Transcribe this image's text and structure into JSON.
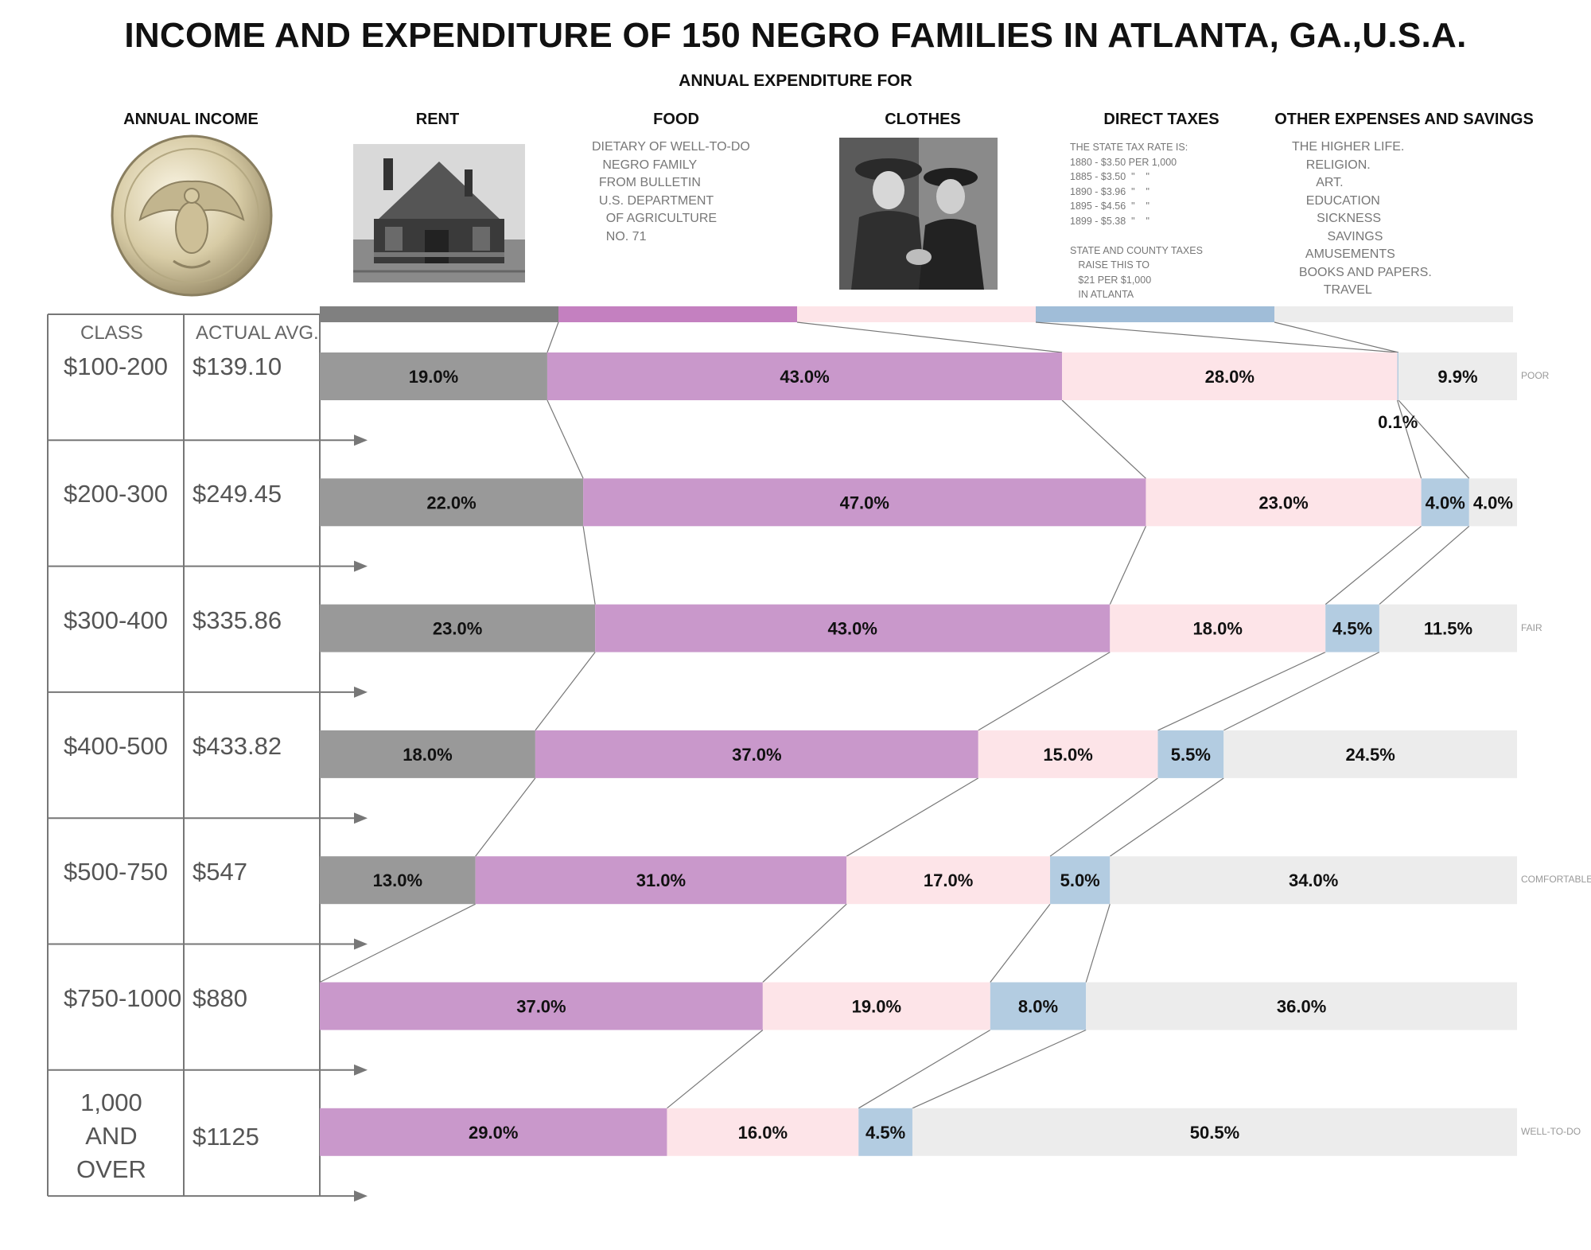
{
  "title": "INCOME AND EXPENDITURE OF 150 NEGRO FAMILIES IN ATLANTA, GA.,U.S.A.",
  "subtitle": "ANNUAL EXPENDITURE FOR",
  "headers": {
    "income": "ANNUAL INCOME",
    "rent": "RENT",
    "food": "FOOD",
    "clothes": "CLOTHES",
    "taxes": "DIRECT TAXES",
    "other": "OTHER EXPENSES AND SAVINGS"
  },
  "food_note": "DIETARY OF WELL-TO-DO\n   NEGRO FAMILY\n  FROM BULLETIN\n  U.S. DEPARTMENT\n    OF AGRICULTURE\n    NO. 71",
  "tax_note": "THE STATE TAX RATE IS:\n1880 - $3.50 PER 1,000\n1885 - $3.50  \"    \"\n1890 - $3.96  \"    \"\n1895 - $4.56  \"    \"\n1899 - $5.38  \"    \"\n\nSTATE AND COUNTY TAXES\n   RAISE THIS TO\n   $21 PER $1,000\n   IN ATLANTA",
  "other_note": "THE HIGHER LIFE.\n    RELIGION.\n       ART.\n    EDUCATION\n       SICKNESS\n          SAVINGS\n    AMUSEMENTS\n  BOOKS AND PAPERS.\n         TRAVEL",
  "table": {
    "class_header": "CLASS",
    "avg_header": "ACTUAL AVG."
  },
  "colors": {
    "rent": "#999999",
    "rent_header": "#808080",
    "food": "#c998cb",
    "food_header": "#c480c0",
    "clothes": "#fde4e8",
    "taxes": "#b3cce1",
    "taxes_header": "#a0bdd8",
    "other": "#ececec"
  },
  "icons": {
    "coin": "silver-dollar-coin-icon",
    "house": "house-photo-icon",
    "clothes": "two-women-photo-icon"
  },
  "chart_data": {
    "type": "bar",
    "orientation": "horizontal-stacked-100",
    "series_names": [
      "RENT",
      "FOOD",
      "CLOTHES",
      "DIRECT TAXES",
      "OTHER EXPENSES AND SAVINGS"
    ],
    "rows": [
      {
        "class": "$100-200",
        "avg": "$139.10",
        "status": "POOR",
        "values": [
          19.0,
          43.0,
          28.0,
          0.1,
          9.9
        ],
        "labels": [
          "19.0%",
          "43.0%",
          "28.0%",
          "0.1%",
          "9.9%"
        ]
      },
      {
        "class": "$200-300",
        "avg": "$249.45",
        "status": "",
        "values": [
          22.0,
          47.0,
          23.0,
          4.0,
          4.0
        ],
        "labels": [
          "22.0%",
          "47.0%",
          "23.0%",
          "4.0%",
          "4.0%"
        ]
      },
      {
        "class": "$300-400",
        "avg": "$335.86",
        "status": "FAIR",
        "values": [
          23.0,
          43.0,
          18.0,
          4.5,
          11.5
        ],
        "labels": [
          "23.0%",
          "43.0%",
          "18.0%",
          "4.5%",
          "11.5%"
        ]
      },
      {
        "class": "$400-500",
        "avg": "$433.82",
        "status": "",
        "values": [
          18.0,
          37.0,
          15.0,
          5.5,
          24.5
        ],
        "labels": [
          "18.0%",
          "37.0%",
          "15.0%",
          "5.5%",
          "24.5%"
        ]
      },
      {
        "class": "$500-750",
        "avg": "$547",
        "status": "COMFORTABLE",
        "values": [
          13.0,
          31.0,
          17.0,
          5.0,
          34.0
        ],
        "labels": [
          "13.0%",
          "31.0%",
          "17.0%",
          "5.0%",
          "34.0%"
        ]
      },
      {
        "class": "$750-1000",
        "avg": "$880",
        "status": "",
        "values": [
          0,
          37.0,
          19.0,
          8.0,
          36.0
        ],
        "labels": [
          "",
          "37.0%",
          "19.0%",
          "8.0%",
          "36.0%"
        ]
      },
      {
        "class": "1,000\nAND\nOVER",
        "avg": "$1125",
        "status": "WELL-TO-DO",
        "values": [
          0,
          29.0,
          16.0,
          4.5,
          50.5
        ],
        "labels": [
          "",
          "29.0%",
          "16.0%",
          "4.5%",
          "50.5%"
        ]
      }
    ]
  }
}
